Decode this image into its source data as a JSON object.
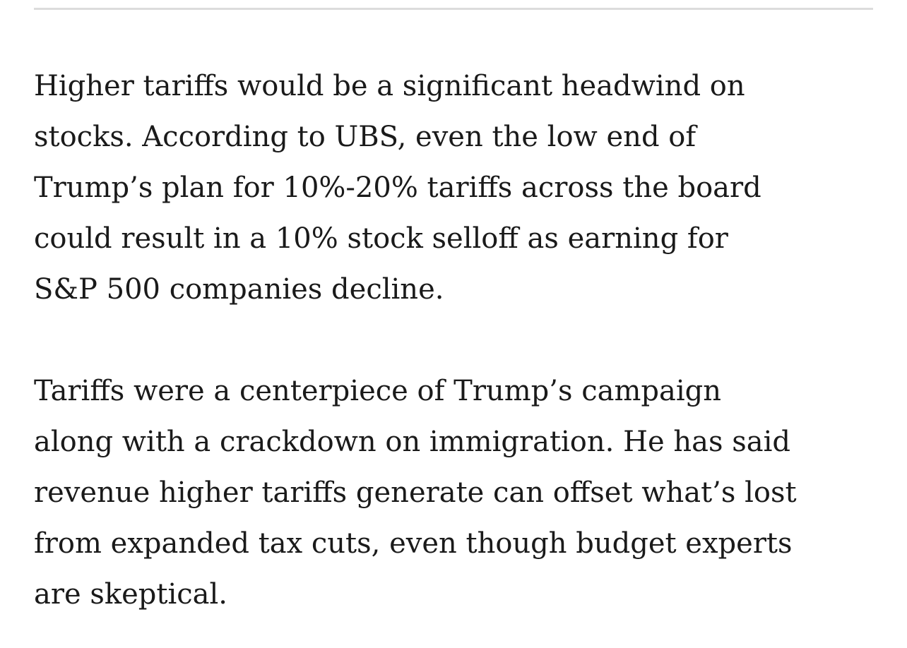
{
  "article": {
    "paragraphs": [
      {
        "lines": [
          "Higher tariffs would be a significant headwind on",
          "stocks. According to UBS, even the low end of",
          "Trump’s plan for 10%-20% tariffs across the board",
          "could result in a 10% stock selloff as earning for",
          "S&P 500 companies decline."
        ]
      },
      {
        "lines": [
          "Tariffs were a centerpiece of Trump’s campaign",
          "along with a crackdown on immigration. He has said",
          "revenue higher tariffs generate can offset what’s lost",
          "from expanded tax cuts, even though budget experts",
          "are skeptical."
        ]
      }
    ]
  },
  "colors": {
    "text": "#1a1a1a",
    "divider": "#dcdcdc",
    "background": "#ffffff"
  }
}
